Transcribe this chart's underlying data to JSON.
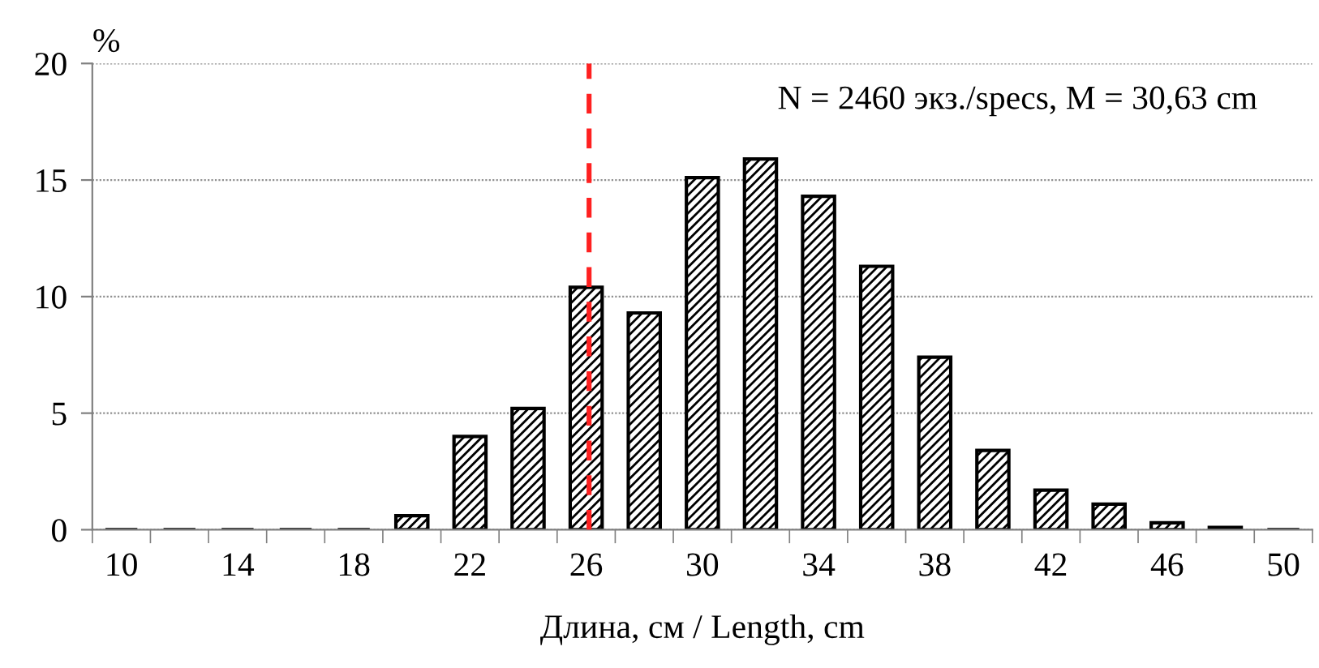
{
  "chart_data": {
    "type": "bar",
    "categories": [
      "10",
      null,
      "14",
      null,
      "18",
      null,
      "22",
      null,
      "26",
      null,
      "30",
      null,
      "34",
      null,
      "38",
      null,
      "42",
      null,
      "46",
      null,
      "50"
    ],
    "values": [
      0,
      0,
      0,
      0,
      0,
      0.6,
      4.0,
      5.2,
      10.4,
      9.3,
      15.1,
      15.9,
      14.3,
      11.3,
      7.4,
      3.4,
      1.7,
      1.1,
      0.3,
      0.1,
      0
    ],
    "color": "#000000",
    "ylabel": "%",
    "xlabel": "Длина, см / Length, cm",
    "annotations": [
      "N = 2460 экз./specs, M = 30,63 cm"
    ],
    "ylim": [
      0,
      20
    ],
    "yticks": [
      0,
      5,
      10,
      15,
      20
    ],
    "grid": "y",
    "legend": false,
    "ref_lines": [
      {
        "axis": "x",
        "value": "26",
        "color": "#ff2020",
        "line_style": "dashed"
      }
    ]
  }
}
